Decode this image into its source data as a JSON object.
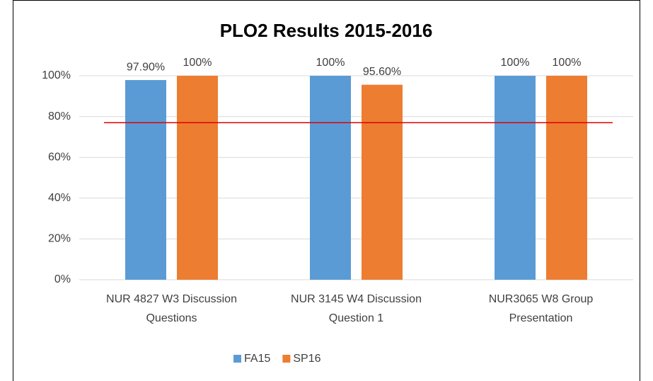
{
  "chart_data": {
    "type": "bar",
    "title": "PLO2 Results 2015-2016",
    "categories": [
      "NUR 4827 W3 Discussion Questions",
      "NUR 3145 W4 Discussion Question 1",
      "NUR3065 W8 Group Presentation"
    ],
    "series": [
      {
        "name": "FA15",
        "color": "#5b9bd5",
        "values": [
          97.9,
          100,
          100
        ],
        "value_labels": [
          "97.90%",
          "100%",
          "100%"
        ]
      },
      {
        "name": "SP16",
        "color": "#ed7d31",
        "values": [
          100,
          95.6,
          100
        ],
        "value_labels": [
          "100%",
          "95.60%",
          "100%"
        ]
      }
    ],
    "ylim": [
      0,
      100
    ],
    "yticks": [
      {
        "value": 0,
        "label": "0%"
      },
      {
        "value": 20,
        "label": "20%"
      },
      {
        "value": 40,
        "label": "40%"
      },
      {
        "value": 60,
        "label": "60%"
      },
      {
        "value": 80,
        "label": "80%"
      },
      {
        "value": 100,
        "label": "100%"
      }
    ],
    "target": 77,
    "target_color": "#e00000",
    "grid": true,
    "legend": "bottom"
  }
}
